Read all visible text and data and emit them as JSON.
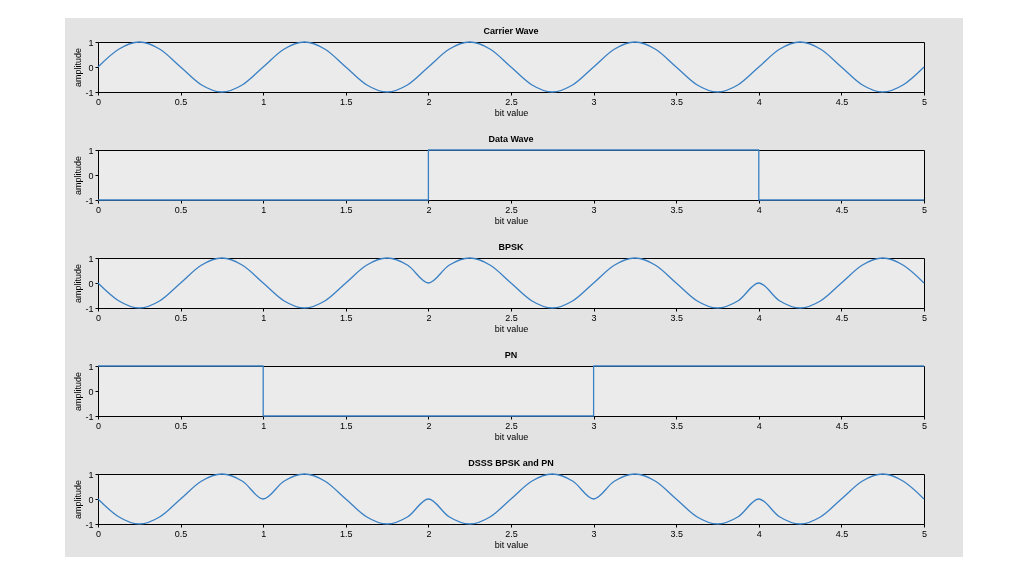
{
  "chart_data": [
    {
      "type": "line",
      "title": "Carrier Wave",
      "xlabel": "bit value",
      "ylabel": "amplitude",
      "xlim": [
        0,
        5
      ],
      "ylim": [
        -1,
        1
      ],
      "xticks": [
        0,
        0.5,
        1,
        1.5,
        2,
        2.5,
        3,
        3.5,
        4,
        4.5,
        5
      ],
      "yticks": [
        -1,
        0,
        1
      ],
      "x": [
        0,
        0.125,
        0.25,
        0.375,
        0.5,
        0.625,
        0.75,
        0.875,
        1,
        1.125,
        1.25,
        1.375,
        1.5,
        1.625,
        1.75,
        1.875,
        2,
        2.125,
        2.25,
        2.375,
        2.5,
        2.625,
        2.75,
        2.875,
        3,
        3.125,
        3.25,
        3.375,
        3.5,
        3.625,
        3.75,
        3.875,
        4,
        4.125,
        4.25,
        4.375,
        4.5,
        4.625,
        4.75,
        4.875,
        5
      ],
      "series": [
        {
          "color": "#3a80c4",
          "values": [
            0,
            0.71,
            1,
            0.71,
            0,
            -0.71,
            -1,
            -0.71,
            0,
            0.71,
            1,
            0.71,
            0,
            -0.71,
            -1,
            -0.71,
            0,
            0.71,
            1,
            0.71,
            0,
            -0.71,
            -1,
            -0.71,
            0,
            0.71,
            1,
            0.71,
            0,
            -0.71,
            -1,
            -0.71,
            0,
            0.71,
            1,
            0.71,
            0,
            -0.71,
            -1,
            -0.71,
            0
          ]
        }
      ]
    },
    {
      "type": "step",
      "title": "Data Wave",
      "xlabel": "bit value",
      "ylabel": "amplitude",
      "xlim": [
        0,
        5
      ],
      "ylim": [
        -1,
        1
      ],
      "xticks": [
        0,
        0.5,
        1,
        1.5,
        2,
        2.5,
        3,
        3.5,
        4,
        4.5,
        5
      ],
      "yticks": [
        -1,
        0,
        1
      ],
      "x": [
        0,
        2,
        4,
        5
      ],
      "series": [
        {
          "color": "#3a80c4",
          "values": [
            -1,
            1,
            -1,
            -1
          ]
        }
      ]
    },
    {
      "type": "line",
      "title": "BPSK",
      "xlabel": "bit value",
      "ylabel": "amplitude",
      "xlim": [
        0,
        5
      ],
      "ylim": [
        -1,
        1
      ],
      "xticks": [
        0,
        0.5,
        1,
        1.5,
        2,
        2.5,
        3,
        3.5,
        4,
        4.5,
        5
      ],
      "yticks": [
        -1,
        0,
        1
      ],
      "x": [
        0,
        0.125,
        0.25,
        0.375,
        0.5,
        0.625,
        0.75,
        0.875,
        1,
        1.125,
        1.25,
        1.375,
        1.5,
        1.625,
        1.75,
        1.875,
        2,
        2.125,
        2.25,
        2.375,
        2.5,
        2.625,
        2.75,
        2.875,
        3,
        3.125,
        3.25,
        3.375,
        3.5,
        3.625,
        3.75,
        3.875,
        4,
        4.125,
        4.25,
        4.375,
        4.5,
        4.625,
        4.75,
        4.875,
        5
      ],
      "series": [
        {
          "color": "#3a80c4",
          "values": [
            0,
            -0.71,
            -1,
            -0.71,
            0,
            0.71,
            1,
            0.71,
            0,
            -0.71,
            -1,
            -0.71,
            0,
            0.71,
            1,
            0.71,
            0,
            0.71,
            1,
            0.71,
            0,
            -0.71,
            -1,
            -0.71,
            0,
            0.71,
            1,
            0.71,
            0,
            -0.71,
            -1,
            -0.71,
            0,
            -0.71,
            -1,
            -0.71,
            0,
            0.71,
            1,
            0.71,
            0
          ]
        }
      ]
    },
    {
      "type": "step",
      "title": "PN",
      "xlabel": "bit value",
      "ylabel": "amplitude",
      "xlim": [
        0,
        5
      ],
      "ylim": [
        -1,
        1
      ],
      "xticks": [
        0,
        0.5,
        1,
        1.5,
        2,
        2.5,
        3,
        3.5,
        4,
        4.5,
        5
      ],
      "yticks": [
        -1,
        0,
        1
      ],
      "x": [
        0,
        1,
        3,
        5
      ],
      "series": [
        {
          "color": "#3a80c4",
          "values": [
            1,
            -1,
            1,
            1
          ]
        }
      ]
    },
    {
      "type": "line",
      "title": "DSSS BPSK and PN",
      "xlabel": "bit value",
      "ylabel": "amplitude",
      "xlim": [
        0,
        5
      ],
      "ylim": [
        -1,
        1
      ],
      "xticks": [
        0,
        0.5,
        1,
        1.5,
        2,
        2.5,
        3,
        3.5,
        4,
        4.5,
        5
      ],
      "yticks": [
        -1,
        0,
        1
      ],
      "x": [
        0,
        0.125,
        0.25,
        0.375,
        0.5,
        0.625,
        0.75,
        0.875,
        1,
        1.125,
        1.25,
        1.375,
        1.5,
        1.625,
        1.75,
        1.875,
        2,
        2.125,
        2.25,
        2.375,
        2.5,
        2.625,
        2.75,
        2.875,
        3,
        3.125,
        3.25,
        3.375,
        3.5,
        3.625,
        3.75,
        3.875,
        4,
        4.125,
        4.25,
        4.375,
        4.5,
        4.625,
        4.75,
        4.875,
        5
      ],
      "series": [
        {
          "color": "#3a80c4",
          "values": [
            0,
            -0.71,
            -1,
            -0.71,
            0,
            0.71,
            1,
            0.71,
            0,
            0.71,
            1,
            0.71,
            0,
            -0.71,
            -1,
            -0.71,
            0,
            -0.71,
            -1,
            -0.71,
            0,
            0.71,
            1,
            0.71,
            0,
            0.71,
            1,
            0.71,
            0,
            -0.71,
            -1,
            -0.71,
            0,
            -0.71,
            -1,
            -0.71,
            0,
            0.71,
            1,
            0.71,
            0
          ]
        }
      ]
    }
  ]
}
